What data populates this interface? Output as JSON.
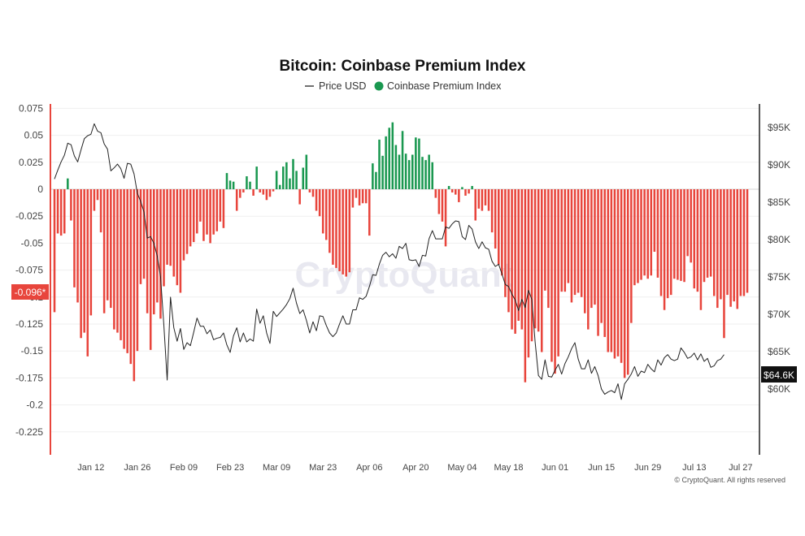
{
  "chart_data": {
    "type": "bar",
    "title": "Bitcoin: Coinbase Premium Index",
    "legend": {
      "position": "top-center",
      "entries": [
        {
          "name": "Price USD",
          "marker": "line",
          "color": "#222222"
        },
        {
          "name": "Coinbase Premium Index",
          "marker": "dot",
          "color": "#1a9850"
        }
      ]
    },
    "watermark": "CryptoQuant",
    "footer": "© CryptoQuant. All rights reserved",
    "colors": {
      "positive": "#1a9850",
      "negative": "#e8453c",
      "price_line": "#222222",
      "axis_left": "#e8453c"
    },
    "left_axis": {
      "ylim": [
        -0.24,
        0.078
      ],
      "ticks": [
        "0.075",
        "0.05",
        "0.025",
        "0",
        "-0.025",
        "-0.05",
        "-0.075",
        "-0.1",
        "-0.125",
        "-0.15",
        "-0.175",
        "-0.2",
        "-0.225"
      ],
      "tick_values": [
        0.075,
        0.05,
        0.025,
        0,
        -0.025,
        -0.05,
        -0.075,
        -0.1,
        -0.125,
        -0.15,
        -0.175,
        -0.2,
        -0.225
      ],
      "current_badge": "-0.096*",
      "current_value": -0.096
    },
    "right_axis": {
      "ylim": [
        56000,
        98000
      ],
      "ticks": [
        "$95K",
        "$90K",
        "$85K",
        "$80K",
        "$75K",
        "$70K",
        "$65K",
        "$60K"
      ],
      "tick_values": [
        95000,
        90000,
        85000,
        80000,
        75000,
        70000,
        65000,
        60000
      ],
      "current_badge": "$64.6K",
      "current_value": 64600
    },
    "x_axis": {
      "labels": [
        "Jan 12",
        "Jan 26",
        "Feb 09",
        "Feb 23",
        "Mar 09",
        "Mar 23",
        "Apr 06",
        "Apr 20",
        "May 04",
        "May 18",
        "Jun 01",
        "Jun 15",
        "Jun 29",
        "Jul 13",
        "Jul 27"
      ],
      "label_day_index": [
        11,
        25,
        39,
        53,
        67,
        81,
        95,
        109,
        123,
        137,
        151,
        165,
        179,
        193,
        207
      ],
      "start": "Jan 01",
      "end": "Aug 04"
    },
    "series": [
      {
        "name": "Coinbase Premium Index",
        "kind": "bar",
        "values": [
          -0.114,
          -0.041,
          -0.043,
          -0.041,
          0.01,
          -0.029,
          -0.091,
          -0.105,
          -0.138,
          -0.133,
          -0.155,
          -0.117,
          -0.02,
          -0.01,
          -0.04,
          -0.115,
          -0.103,
          -0.11,
          -0.13,
          -0.133,
          -0.14,
          -0.148,
          -0.152,
          -0.162,
          -0.178,
          -0.15,
          -0.088,
          -0.083,
          -0.115,
          -0.149,
          -0.116,
          -0.105,
          -0.12,
          -0.09,
          -0.07,
          -0.071,
          -0.081,
          -0.089,
          -0.096,
          -0.066,
          -0.06,
          -0.053,
          -0.049,
          -0.041,
          -0.03,
          -0.048,
          -0.042,
          -0.05,
          -0.042,
          -0.039,
          -0.03,
          -0.036,
          0.015,
          0.008,
          0.007,
          -0.02,
          -0.008,
          -0.003,
          0.012,
          0.007,
          -0.006,
          0.021,
          -0.003,
          -0.005,
          -0.01,
          -0.007,
          -0.002,
          0.017,
          0.004,
          0.021,
          0.025,
          0.01,
          0.028,
          0.017,
          -0.014,
          0.02,
          0.032,
          -0.003,
          -0.007,
          -0.02,
          -0.025,
          -0.041,
          -0.047,
          -0.059,
          -0.07,
          -0.073,
          -0.076,
          -0.079,
          -0.081,
          -0.077,
          -0.017,
          -0.008,
          -0.015,
          -0.013,
          -0.013,
          -0.043,
          0.024,
          0.016,
          0.046,
          0.031,
          0.049,
          0.057,
          0.062,
          0.041,
          0.032,
          0.054,
          0.033,
          0.027,
          0.032,
          0.048,
          0.047,
          0.03,
          0.027,
          0.032,
          0.025,
          -0.008,
          -0.023,
          -0.03,
          -0.053,
          0.003,
          -0.003,
          -0.005,
          -0.012,
          0.002,
          -0.006,
          -0.004,
          0.003,
          -0.029,
          -0.018,
          -0.02,
          -0.015,
          -0.02,
          -0.04,
          -0.055,
          -0.07,
          -0.08,
          -0.1,
          -0.114,
          -0.13,
          -0.134,
          -0.122,
          -0.13,
          -0.179,
          -0.156,
          -0.141,
          -0.129,
          -0.132,
          -0.151,
          -0.094,
          -0.11,
          -0.16,
          -0.171,
          -0.155,
          -0.095,
          -0.095,
          -0.087,
          -0.105,
          -0.098,
          -0.096,
          -0.1,
          -0.115,
          -0.13,
          -0.11,
          -0.107,
          -0.136,
          -0.124,
          -0.137,
          -0.151,
          -0.151,
          -0.157,
          -0.155,
          -0.161,
          -0.175,
          -0.172,
          -0.124,
          -0.089,
          -0.087,
          -0.084,
          -0.08,
          -0.083,
          -0.08,
          -0.058,
          -0.082,
          -0.099,
          -0.112,
          -0.101,
          -0.098,
          -0.083,
          -0.084,
          -0.085,
          -0.086,
          -0.062,
          -0.068,
          -0.092,
          -0.095,
          -0.112,
          -0.086,
          -0.082,
          -0.081,
          -0.099,
          -0.11,
          -0.102,
          -0.138,
          -0.098,
          -0.109,
          -0.104,
          -0.111,
          -0.099,
          -0.099,
          -0.096
        ]
      },
      {
        "name": "Price USD",
        "kind": "line",
        "axis": "right",
        "values": [
          88100,
          89300,
          90400,
          91300,
          92900,
          92700,
          91200,
          90400,
          92000,
          93500,
          93900,
          94100,
          95500,
          94500,
          94300,
          92800,
          92100,
          89200,
          89600,
          90100,
          89500,
          88200,
          90200,
          90100,
          88800,
          86200,
          85100,
          83700,
          80200,
          80400,
          79500,
          77800,
          75000,
          68500,
          61200,
          72300,
          68200,
          66400,
          68100,
          65300,
          66200,
          65800,
          67600,
          69500,
          68400,
          68400,
          67400,
          67900,
          66600,
          66800,
          66900,
          67500,
          65900,
          64900,
          67100,
          68200,
          66300,
          67500,
          66300,
          66700,
          66400,
          70700,
          68800,
          69800,
          67500,
          66100,
          70400,
          69700,
          70200,
          70700,
          71300,
          72100,
          73500,
          71500,
          70100,
          70600,
          69200,
          67500,
          69000,
          67800,
          69800,
          69700,
          68500,
          67500,
          67000,
          67500,
          68700,
          69800,
          68700,
          68700,
          70600,
          70600,
          72200,
          72000,
          72400,
          73700,
          75300,
          75200,
          76700,
          77900,
          78300,
          77700,
          78100,
          77500,
          79100,
          78800,
          79500,
          77300,
          77200,
          77300,
          76400,
          77900,
          77800,
          80100,
          81200,
          80100,
          80100,
          80100,
          81700,
          81500,
          82100,
          82500,
          82400,
          80400,
          80000,
          81900,
          81400,
          79700,
          78800,
          79700,
          78900,
          78700,
          77100,
          76400,
          76700,
          75400,
          74000,
          73700,
          72700,
          71900,
          70500,
          72000,
          70900,
          73200,
          72000,
          66300,
          61800,
          61300,
          63900,
          61700,
          61600,
          62500,
          63300,
          62000,
          63400,
          64300,
          65400,
          66200,
          64000,
          62700,
          62700,
          63900,
          62100,
          63000,
          61800,
          60000,
          59300,
          59600,
          59800,
          59500,
          60700,
          58600,
          60700,
          61300,
          62000,
          63000,
          61700,
          62400,
          62200,
          63300,
          62700,
          62300,
          63900,
          63200,
          64200,
          64600,
          64000,
          63800,
          64000,
          65500,
          64900,
          64100,
          64300,
          64800,
          63900,
          64700,
          63700,
          64100,
          62900,
          63100,
          63800,
          64000,
          64600
        ]
      }
    ]
  }
}
